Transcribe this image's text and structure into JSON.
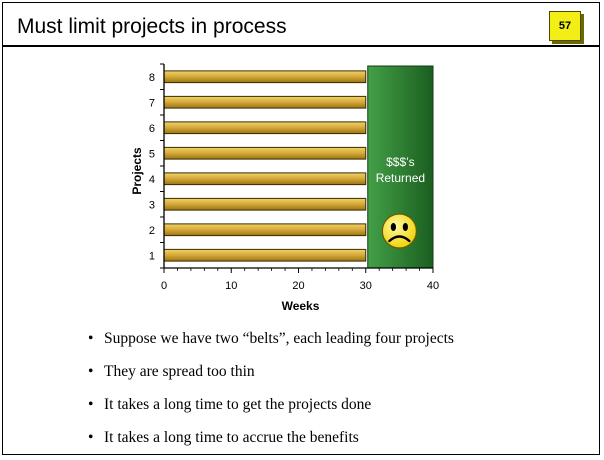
{
  "slide": {
    "title": "Must limit projects in process",
    "page_number": "57"
  },
  "chart_data": {
    "type": "bar",
    "orientation": "horizontal",
    "categories": [
      "1",
      "2",
      "3",
      "4",
      "5",
      "6",
      "7",
      "8"
    ],
    "values": [
      30,
      30,
      30,
      30,
      30,
      30,
      30,
      30
    ],
    "xlabel": "Weeks",
    "ylabel": "Projects",
    "xlim": [
      0,
      40
    ],
    "xticks": [
      0,
      10,
      20,
      30,
      40
    ],
    "bar_color": "#d4a838",
    "grid": false,
    "legend": "none",
    "annotation": {
      "text_line1": "$$$’s",
      "text_line2": "Returned",
      "x_range": [
        30,
        40
      ],
      "color": "#2e7d32",
      "icon": "sad-face-icon"
    }
  },
  "bullets": [
    "Suppose we have two “belts”, each leading four projects",
    "They are spread too thin",
    "It takes a long time to get the projects done",
    "It takes a long time to accrue the benefits"
  ]
}
